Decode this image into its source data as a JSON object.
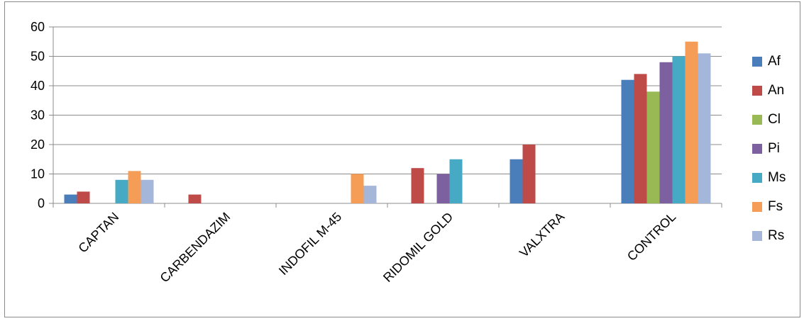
{
  "chart_data": {
    "type": "bar",
    "categories": [
      "CAPTAN",
      "CARBENDAZIM",
      "INDOFIL M-45",
      "RIDOMIL GOLD",
      "VALXTRA",
      "CONTROL"
    ],
    "series": [
      {
        "name": "Af",
        "color": "#4A7EBB",
        "values": [
          3,
          0,
          0,
          0,
          15,
          42
        ]
      },
      {
        "name": "An",
        "color": "#BE4B48",
        "values": [
          4,
          3,
          0,
          12,
          20,
          44
        ]
      },
      {
        "name": "Cl",
        "color": "#98B954",
        "values": [
          0,
          0,
          0,
          0,
          0,
          38
        ]
      },
      {
        "name": "Pi",
        "color": "#7D60A0",
        "values": [
          0,
          0,
          0,
          10,
          0,
          48
        ]
      },
      {
        "name": "Ms",
        "color": "#46AAC5",
        "values": [
          8,
          0,
          0,
          15,
          0,
          50
        ]
      },
      {
        "name": "Fs",
        "color": "#F59D56",
        "values": [
          11,
          0,
          10,
          0,
          0,
          55
        ]
      },
      {
        "name": "Rs",
        "color": "#A5B6DB",
        "values": [
          8,
          0,
          6,
          0,
          0,
          51
        ]
      }
    ],
    "ylim": [
      0,
      60
    ],
    "yticks": [
      0,
      10,
      20,
      30,
      40,
      50,
      60
    ],
    "grid": true,
    "legend_position": "right",
    "title": "",
    "xlabel": "",
    "ylabel": ""
  }
}
